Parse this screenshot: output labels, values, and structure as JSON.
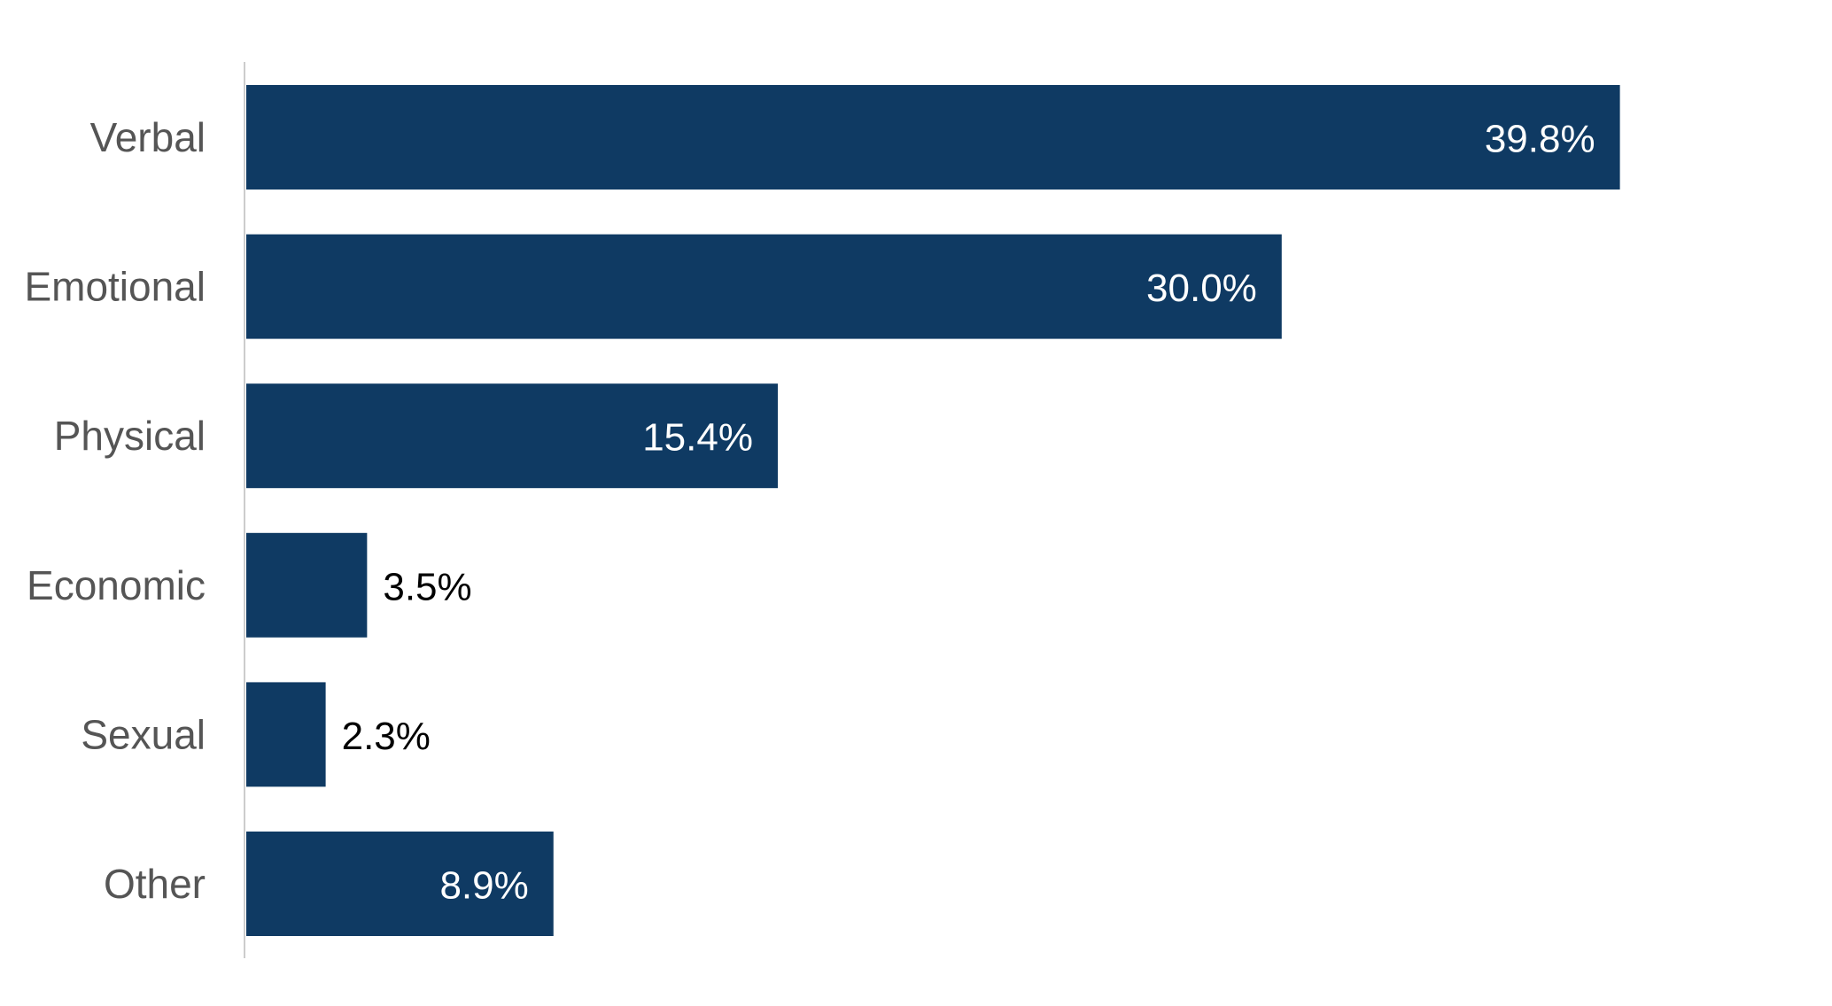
{
  "chart_data": {
    "type": "bar",
    "orientation": "horizontal",
    "categories": [
      "Verbal",
      "Emotional",
      "Physical",
      "Economic",
      "Sexual",
      "Other"
    ],
    "values": [
      39.8,
      30.0,
      15.4,
      3.5,
      2.3,
      8.9
    ],
    "value_labels": [
      "39.8%",
      "30.0%",
      "15.4%",
      "3.5%",
      "2.3%",
      "8.9%"
    ],
    "title": "",
    "xlabel": "",
    "ylabel": "",
    "xlim": [
      0,
      50
    ],
    "grid": false,
    "legend": "none",
    "colors": {
      "bar": "#0f3a63",
      "axis": "#cccccc",
      "category_text": "#555555",
      "label_inside": "#ffffff",
      "label_outside": "#000000"
    }
  }
}
